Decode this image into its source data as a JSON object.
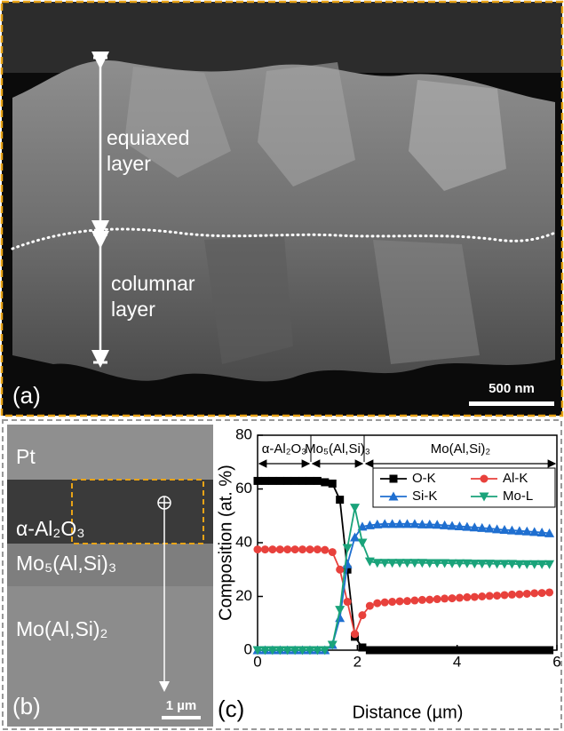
{
  "panel_a": {
    "label": "(a)",
    "annotations": [
      "equiaxed",
      "layer",
      "columnar",
      "layer"
    ],
    "scale_bar": "500 nm"
  },
  "panel_b": {
    "label": "(b)",
    "phases": [
      "Pt",
      "α-Al₂O₃",
      "Mo₅(Al,Si)₃",
      "Mo(Al,Si)₂"
    ],
    "scale_bar": "1 µm"
  },
  "chart_data": {
    "type": "line",
    "panel_label": "(c)",
    "x_label": "Distance (µm)",
    "y_label": "Composition (at. %)",
    "regions": [
      "α-Al₂O₃",
      "Mo₅(Al,Si)₃",
      "Mo(Al,Si)₂"
    ],
    "xlim": [
      0,
      6
    ],
    "ylim": [
      0,
      80
    ],
    "xticks": [
      0,
      2,
      4,
      6
    ],
    "yticks": [
      0,
      20,
      40,
      60,
      80
    ],
    "grid": false,
    "legend": "upper right",
    "x": [
      0,
      0.15,
      0.3,
      0.45,
      0.6,
      0.75,
      0.9,
      1.05,
      1.2,
      1.35,
      1.5,
      1.65,
      1.8,
      1.95,
      2.1,
      2.25,
      2.4,
      2.55,
      2.7,
      2.85,
      3,
      3.15,
      3.3,
      3.45,
      3.6,
      3.75,
      3.9,
      4.05,
      4.2,
      4.35,
      4.5,
      4.65,
      4.8,
      4.95,
      5.1,
      5.25,
      5.4,
      5.55,
      5.7,
      5.85
    ],
    "series": [
      {
        "name": "O-K",
        "color": "#000000",
        "marker": "square",
        "values": [
          63,
          63,
          63,
          63,
          63,
          63,
          63,
          63,
          63,
          62.5,
          62,
          56,
          30,
          5,
          1,
          0,
          0,
          0,
          0,
          0,
          0,
          0,
          0,
          0,
          0,
          0,
          0,
          0,
          0,
          0,
          0,
          0,
          0,
          0,
          0,
          0,
          0,
          0,
          0,
          0
        ]
      },
      {
        "name": "Al-K",
        "color": "#e8413c",
        "marker": "circle",
        "values": [
          37.5,
          37.5,
          37.5,
          37.5,
          37.5,
          37.5,
          37.5,
          37.5,
          37.5,
          37.3,
          36.5,
          30,
          18,
          6,
          13,
          16.5,
          17.5,
          17.8,
          18,
          18.2,
          18.3,
          18.5,
          18.7,
          18.8,
          19,
          19.2,
          19.3,
          19.5,
          19.7,
          19.8,
          20,
          20.2,
          20.3,
          20.5,
          20.7,
          20.8,
          21,
          21.2,
          21.3,
          21.5
        ]
      },
      {
        "name": "Si-K",
        "color": "#1f6fd0",
        "marker": "triangle-up",
        "values": [
          0,
          0,
          0,
          0,
          0,
          0,
          0,
          0,
          0,
          0,
          2,
          12,
          32,
          42,
          46,
          46.5,
          46.8,
          47,
          47,
          47,
          47,
          47,
          46.8,
          46.8,
          46.7,
          46.5,
          46.3,
          46.1,
          45.9,
          45.7,
          45.5,
          45.3,
          45,
          44.8,
          44.6,
          44.4,
          44.2,
          44,
          43.8,
          43.5
        ]
      },
      {
        "name": "Mo-L",
        "color": "#1aa37a",
        "marker": "triangle-down",
        "values": [
          0,
          0,
          0,
          0,
          0,
          0,
          0,
          0,
          0,
          0,
          2,
          15,
          38,
          53,
          40,
          33,
          32.5,
          32.5,
          32.5,
          32.5,
          32.5,
          32.5,
          32.5,
          32.4,
          32.4,
          32.4,
          32.3,
          32.3,
          32.3,
          32.2,
          32.2,
          32.2,
          32.1,
          32.1,
          32.1,
          32,
          32,
          32,
          32,
          32
        ]
      }
    ]
  }
}
